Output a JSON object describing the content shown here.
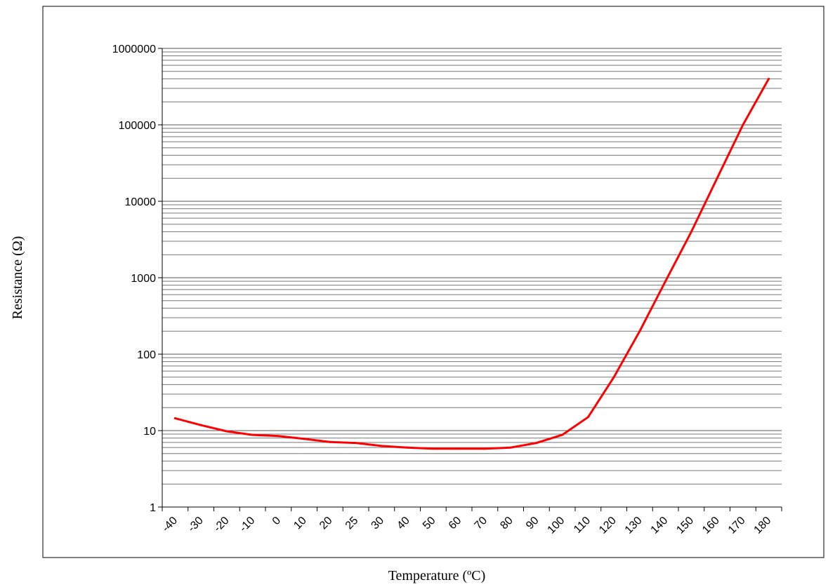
{
  "chart_data": {
    "type": "line",
    "xlabel": "Temperature (ºC)",
    "ylabel": "Resistance (Ω)",
    "yscale": "log",
    "ylim": [
      1,
      1000000
    ],
    "y_ticks": [
      "1",
      "10",
      "100",
      "1000",
      "10000",
      "100000",
      "1000000"
    ],
    "categories": [
      "-40",
      "-30",
      "-20",
      "-10",
      "0",
      "10",
      "20",
      "25",
      "30",
      "40",
      "50",
      "60",
      "70",
      "80",
      "90",
      "100",
      "110",
      "120",
      "130",
      "140",
      "150",
      "160",
      "170",
      "180"
    ],
    "grid": true,
    "legend": "none",
    "series": [
      {
        "color": "#ff0000",
        "values": [
          14.5,
          11.8,
          9.8,
          8.8,
          8.5,
          7.8,
          7.1,
          6.9,
          6.3,
          6.0,
          5.8,
          5.8,
          5.8,
          6.0,
          6.9,
          8.8,
          15,
          50,
          200,
          900,
          4000,
          20000,
          100000,
          400000
        ]
      }
    ]
  }
}
